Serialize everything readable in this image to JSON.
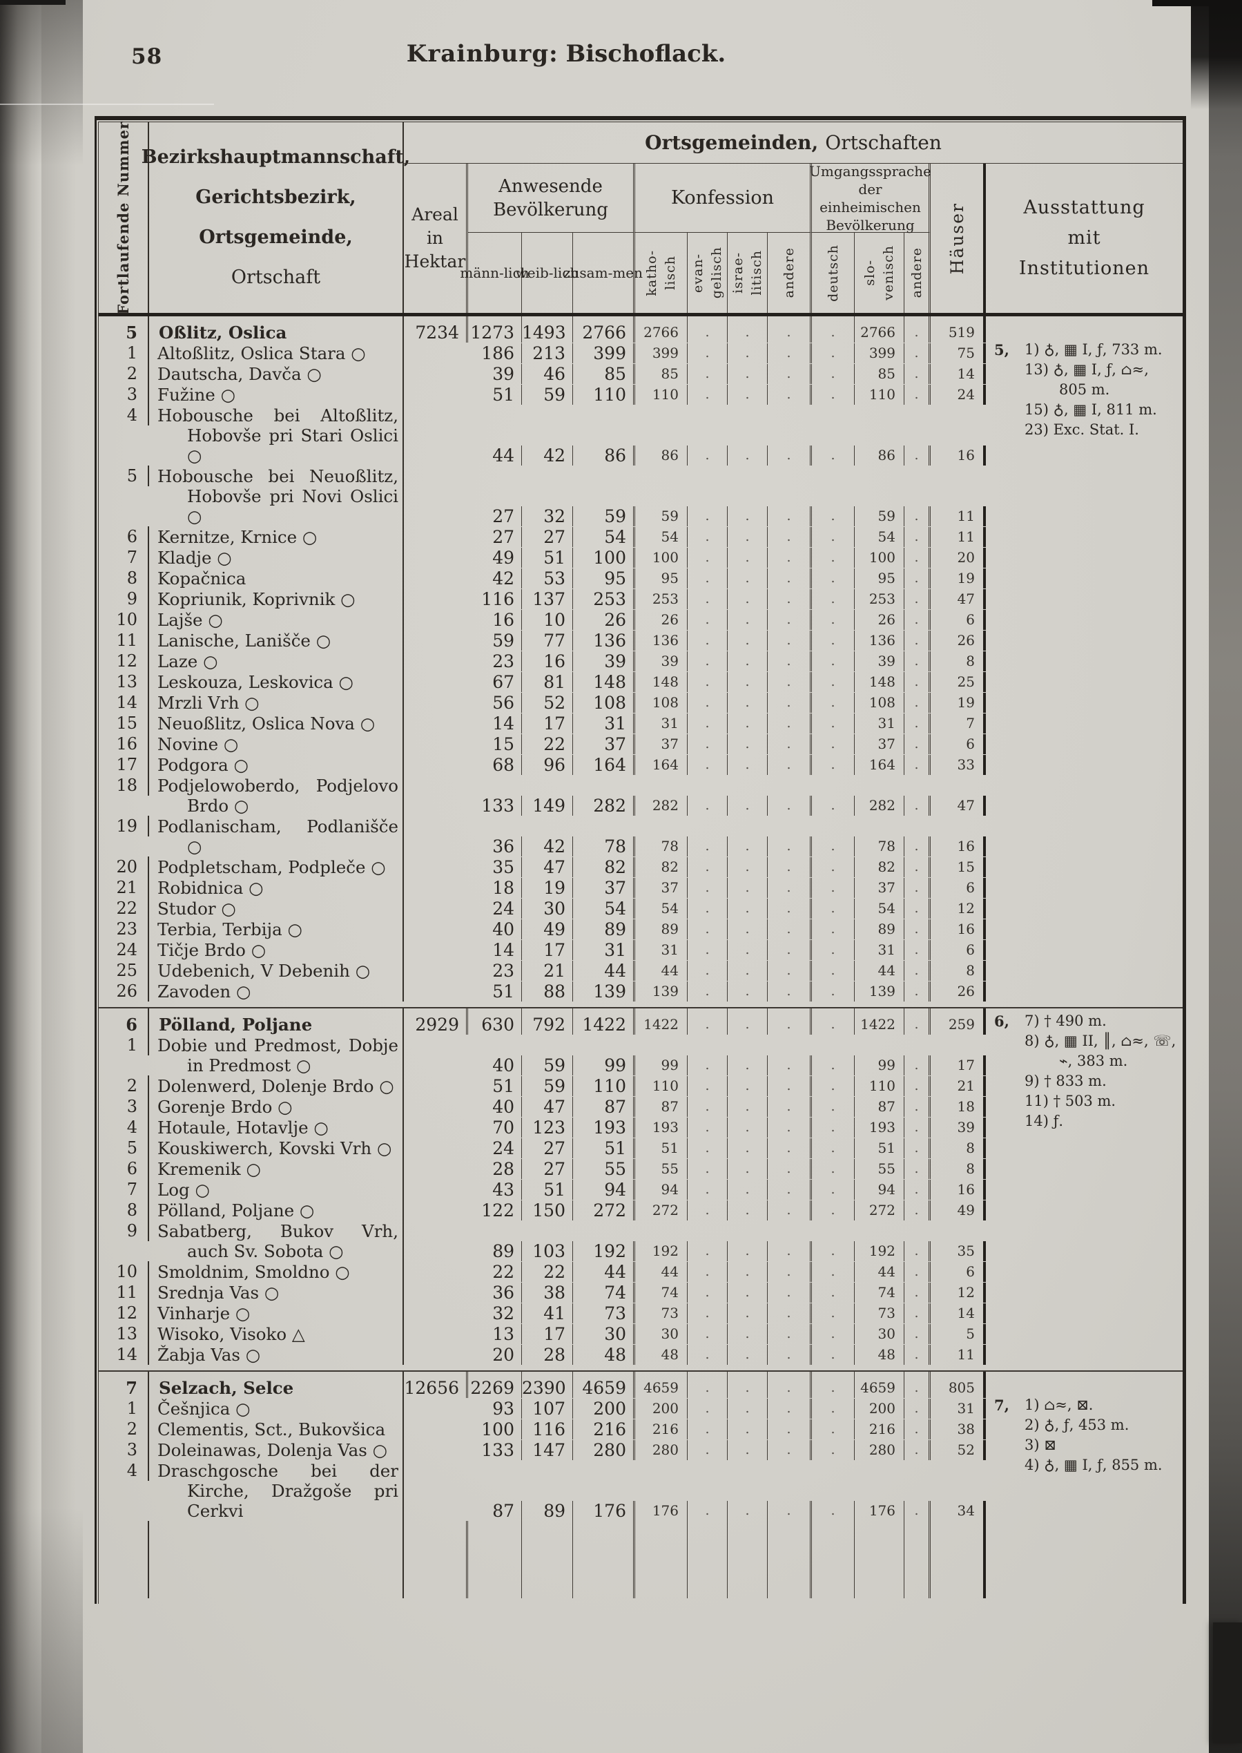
{
  "colors": {
    "paper": "#d2d0ca",
    "ink": "#2a2622",
    "line": "#3f3a34",
    "heavy_line": "#23201c"
  },
  "empty_marker": ".",
  "page": {
    "number": "58",
    "title": {
      "district": "Krainburg:",
      "section": "Bischoflack."
    }
  },
  "table": {
    "header": {
      "nummer": "Fortlaufende Nummer",
      "main": [
        "Bezirkshauptmannschaft,",
        "Gerichtsbezirk,",
        "Ortsgemeinde,",
        "Ortschaft"
      ],
      "span_bold": "Ortsgemeinden,",
      "span_rest": "Ortschaften",
      "areal": [
        "Areal",
        "in",
        "Hektar"
      ],
      "bev": [
        "Anwesende",
        "Bevölkerung"
      ],
      "bev_sub": [
        [
          "männ-",
          "lich"
        ],
        [
          "weib-",
          "lich"
        ],
        [
          "zusam-",
          "men"
        ]
      ],
      "konfession": "Konfession",
      "konf_sub": [
        [
          "katho-",
          "lisch"
        ],
        [
          "evan-",
          "gelisch"
        ],
        [
          "israe-",
          "litisch"
        ],
        [
          "andere"
        ]
      ],
      "sprache": [
        "Umgangssprache",
        "der einheimischen",
        "Bevölkerung"
      ],
      "sprache_sub": [
        [
          "deutsch"
        ],
        [
          "slo-",
          "venisch"
        ],
        [
          "andere"
        ]
      ],
      "haeuser": "Häuser",
      "ausstattung": [
        "Ausstattung",
        "mit",
        "Institutionen"
      ]
    },
    "blocks": [
      {
        "num": "5",
        "name": "Oßlitz, Oslica",
        "areal": "7234",
        "m": "1273",
        "w": "1493",
        "z": "2766",
        "kath": "2766",
        "slov": "2766",
        "haus": "519",
        "rows": [
          {
            "num": "1",
            "name": "Altoßlitz, Oslica Stara ○",
            "m": "186",
            "w": "213",
            "z": "399",
            "kath": "399",
            "slov": "399",
            "haus": "75"
          },
          {
            "num": "2",
            "name": "Dautscha, Davča ○",
            "m": "39",
            "w": "46",
            "z": "85",
            "kath": "85",
            "slov": "85",
            "haus": "14"
          },
          {
            "num": "3",
            "name": "Fužine ○",
            "m": "51",
            "w": "59",
            "z": "110",
            "kath": "110",
            "slov": "110",
            "haus": "24"
          },
          {
            "num": "4",
            "name": "Hobousche bei Altoßlitz, Hobovše pri Stari Oslici ○",
            "m": "44",
            "w": "42",
            "z": "86",
            "kath": "86",
            "slov": "86",
            "haus": "16"
          },
          {
            "num": "5",
            "name": "Hobousche bei Neuoßlitz, Hobovše pri Novi Oslici ○",
            "m": "27",
            "w": "32",
            "z": "59",
            "kath": "59",
            "slov": "59",
            "haus": "11"
          },
          {
            "num": "6",
            "name": "Kernitze, Krnice ○",
            "m": "27",
            "w": "27",
            "z": "54",
            "kath": "54",
            "slov": "54",
            "haus": "11"
          },
          {
            "num": "7",
            "name": "Kladje ○",
            "m": "49",
            "w": "51",
            "z": "100",
            "kath": "100",
            "slov": "100",
            "haus": "20"
          },
          {
            "num": "8",
            "name": "Kopačnica",
            "m": "42",
            "w": "53",
            "z": "95",
            "kath": "95",
            "slov": "95",
            "haus": "19"
          },
          {
            "num": "9",
            "name": "Kopriunik, Koprivnik ○",
            "m": "116",
            "w": "137",
            "z": "253",
            "kath": "253",
            "slov": "253",
            "haus": "47"
          },
          {
            "num": "10",
            "name": "Lajše ○",
            "m": "16",
            "w": "10",
            "z": "26",
            "kath": "26",
            "slov": "26",
            "haus": "6"
          },
          {
            "num": "11",
            "name": "Lanische, Lanišče ○",
            "m": "59",
            "w": "77",
            "z": "136",
            "kath": "136",
            "slov": "136",
            "haus": "26"
          },
          {
            "num": "12",
            "name": "Laze ○",
            "m": "23",
            "w": "16",
            "z": "39",
            "kath": "39",
            "slov": "39",
            "haus": "8"
          },
          {
            "num": "13",
            "name": "Leskouza, Leskovica ○",
            "m": "67",
            "w": "81",
            "z": "148",
            "kath": "148",
            "slov": "148",
            "haus": "25"
          },
          {
            "num": "14",
            "name": "Mrzli Vrh ○",
            "m": "56",
            "w": "52",
            "z": "108",
            "kath": "108",
            "slov": "108",
            "haus": "19"
          },
          {
            "num": "15",
            "name": "Neuoßlitz, Oslica Nova ○",
            "m": "14",
            "w": "17",
            "z": "31",
            "kath": "31",
            "slov": "31",
            "haus": "7"
          },
          {
            "num": "16",
            "name": "Novine ○",
            "m": "15",
            "w": "22",
            "z": "37",
            "kath": "37",
            "slov": "37",
            "haus": "6"
          },
          {
            "num": "17",
            "name": "Podgora ○",
            "m": "68",
            "w": "96",
            "z": "164",
            "kath": "164",
            "slov": "164",
            "haus": "33"
          },
          {
            "num": "18",
            "name": "Podjelowoberdo, Podjelovo Brdo ○",
            "m": "133",
            "w": "149",
            "z": "282",
            "kath": "282",
            "slov": "282",
            "haus": "47"
          },
          {
            "num": "19",
            "name": "Podlanischam, Podlanišče ○",
            "m": "36",
            "w": "42",
            "z": "78",
            "kath": "78",
            "slov": "78",
            "haus": "16"
          },
          {
            "num": "20",
            "name": "Podpletscham, Podpleče ○",
            "m": "35",
            "w": "47",
            "z": "82",
            "kath": "82",
            "slov": "82",
            "haus": "15"
          },
          {
            "num": "21",
            "name": "Robidnica ○",
            "m": "18",
            "w": "19",
            "z": "37",
            "kath": "37",
            "slov": "37",
            "haus": "6"
          },
          {
            "num": "22",
            "name": "Studor ○",
            "m": "24",
            "w": "30",
            "z": "54",
            "kath": "54",
            "slov": "54",
            "haus": "12"
          },
          {
            "num": "23",
            "name": "Terbia, Terbija ○",
            "m": "40",
            "w": "49",
            "z": "89",
            "kath": "89",
            "slov": "89",
            "haus": "16"
          },
          {
            "num": "24",
            "name": "Tičje Brdo ○",
            "m": "14",
            "w": "17",
            "z": "31",
            "kath": "31",
            "slov": "31",
            "haus": "6"
          },
          {
            "num": "25",
            "name": "Udebenich, V Debenih ○",
            "m": "23",
            "w": "21",
            "z": "44",
            "kath": "44",
            "slov": "44",
            "haus": "8"
          },
          {
            "num": "26",
            "name": "Zavoden ○",
            "m": "51",
            "w": "88",
            "z": "139",
            "kath": "139",
            "slov": "139",
            "haus": "26"
          }
        ],
        "notes": {
          "prefix": "5,",
          "lines": [
            "1) ♁, ▦ I, ƒ, 733 m.",
            "13) ♁, ▦ I, ƒ, ⌂≈, 805 m.",
            "15) ♁, ▦ I, 811 m.",
            "23) Exc. Stat. I."
          ]
        }
      },
      {
        "num": "6",
        "name": "Pölland, Poljane",
        "areal": "2929",
        "m": "630",
        "w": "792",
        "z": "1422",
        "kath": "1422",
        "slov": "1422",
        "haus": "259",
        "rows": [
          {
            "num": "1",
            "name": "Dobie und Predmost, Dobje in Predmost ○",
            "m": "40",
            "w": "59",
            "z": "99",
            "kath": "99",
            "slov": "99",
            "haus": "17"
          },
          {
            "num": "2",
            "name": "Dolenwerd, Dolenje Brdo ○",
            "m": "51",
            "w": "59",
            "z": "110",
            "kath": "110",
            "slov": "110",
            "haus": "21"
          },
          {
            "num": "3",
            "name": "Gorenje Brdo ○",
            "m": "40",
            "w": "47",
            "z": "87",
            "kath": "87",
            "slov": "87",
            "haus": "18"
          },
          {
            "num": "4",
            "name": "Hotaule, Hotavlje ○",
            "m": "70",
            "w": "123",
            "z": "193",
            "kath": "193",
            "slov": "193",
            "haus": "39"
          },
          {
            "num": "5",
            "name": "Kouskiwerch, Kovski Vrh ○",
            "m": "24",
            "w": "27",
            "z": "51",
            "kath": "51",
            "slov": "51",
            "haus": "8"
          },
          {
            "num": "6",
            "name": "Kremenik ○",
            "m": "28",
            "w": "27",
            "z": "55",
            "kath": "55",
            "slov": "55",
            "haus": "8"
          },
          {
            "num": "7",
            "name": "Log ○",
            "m": "43",
            "w": "51",
            "z": "94",
            "kath": "94",
            "slov": "94",
            "haus": "16"
          },
          {
            "num": "8",
            "name": "Pölland, Poljane ○",
            "m": "122",
            "w": "150",
            "z": "272",
            "kath": "272",
            "slov": "272",
            "haus": "49"
          },
          {
            "num": "9",
            "name": "Sabatberg, Bukov Vrh, auch Sv. Sobota ○",
            "m": "89",
            "w": "103",
            "z": "192",
            "kath": "192",
            "slov": "192",
            "haus": "35"
          },
          {
            "num": "10",
            "name": "Smoldnim, Smoldno ○",
            "m": "22",
            "w": "22",
            "z": "44",
            "kath": "44",
            "slov": "44",
            "haus": "6"
          },
          {
            "num": "11",
            "name": "Srednja Vas ○",
            "m": "36",
            "w": "38",
            "z": "74",
            "kath": "74",
            "slov": "74",
            "haus": "12"
          },
          {
            "num": "12",
            "name": "Vinharje ○",
            "m": "32",
            "w": "41",
            "z": "73",
            "kath": "73",
            "slov": "73",
            "haus": "14"
          },
          {
            "num": "13",
            "name": "Wisoko, Visoko △",
            "m": "13",
            "w": "17",
            "z": "30",
            "kath": "30",
            "slov": "30",
            "haus": "5"
          },
          {
            "num": "14",
            "name": "Žabja Vas ○",
            "m": "20",
            "w": "28",
            "z": "48",
            "kath": "48",
            "slov": "48",
            "haus": "11"
          }
        ],
        "notes": {
          "prefix": "6,",
          "lines": [
            "7) † 490 m.",
            "8) ♁, ▦ II, ║, ⌂≈, ☏, ⌁, 383 m.",
            "9) † 833 m.",
            "11) † 503 m.",
            "14) ƒ."
          ]
        }
      },
      {
        "num": "7",
        "name": "Selzach, Selce",
        "areal": "12656",
        "m": "2269",
        "w": "2390",
        "z": "4659",
        "kath": "4659",
        "slov": "4659",
        "haus": "805",
        "rows": [
          {
            "num": "1",
            "name": "Češnjica ○",
            "m": "93",
            "w": "107",
            "z": "200",
            "kath": "200",
            "slov": "200",
            "haus": "31"
          },
          {
            "num": "2",
            "name": "Clementis, Sct., Bukovšica",
            "m": "100",
            "w": "116",
            "z": "216",
            "kath": "216",
            "slov": "216",
            "haus": "38"
          },
          {
            "num": "3",
            "name": "Doleinawas, Dolenja Vas ○",
            "m": "133",
            "w": "147",
            "z": "280",
            "kath": "280",
            "slov": "280",
            "haus": "52"
          },
          {
            "num": "4",
            "name": "Draschgosche bei der Kirche, Dražgoše pri Cerkvi",
            "m": "87",
            "w": "89",
            "z": "176",
            "kath": "176",
            "slov": "176",
            "haus": "34"
          }
        ],
        "notes": {
          "prefix": "7,",
          "lines": [
            "1) ⌂≈, ⊠.",
            "2) ♁, ƒ, 453 m.",
            "3) ⊠",
            "4) ♁, ▦ I, ƒ, 855 m."
          ]
        }
      }
    ]
  }
}
